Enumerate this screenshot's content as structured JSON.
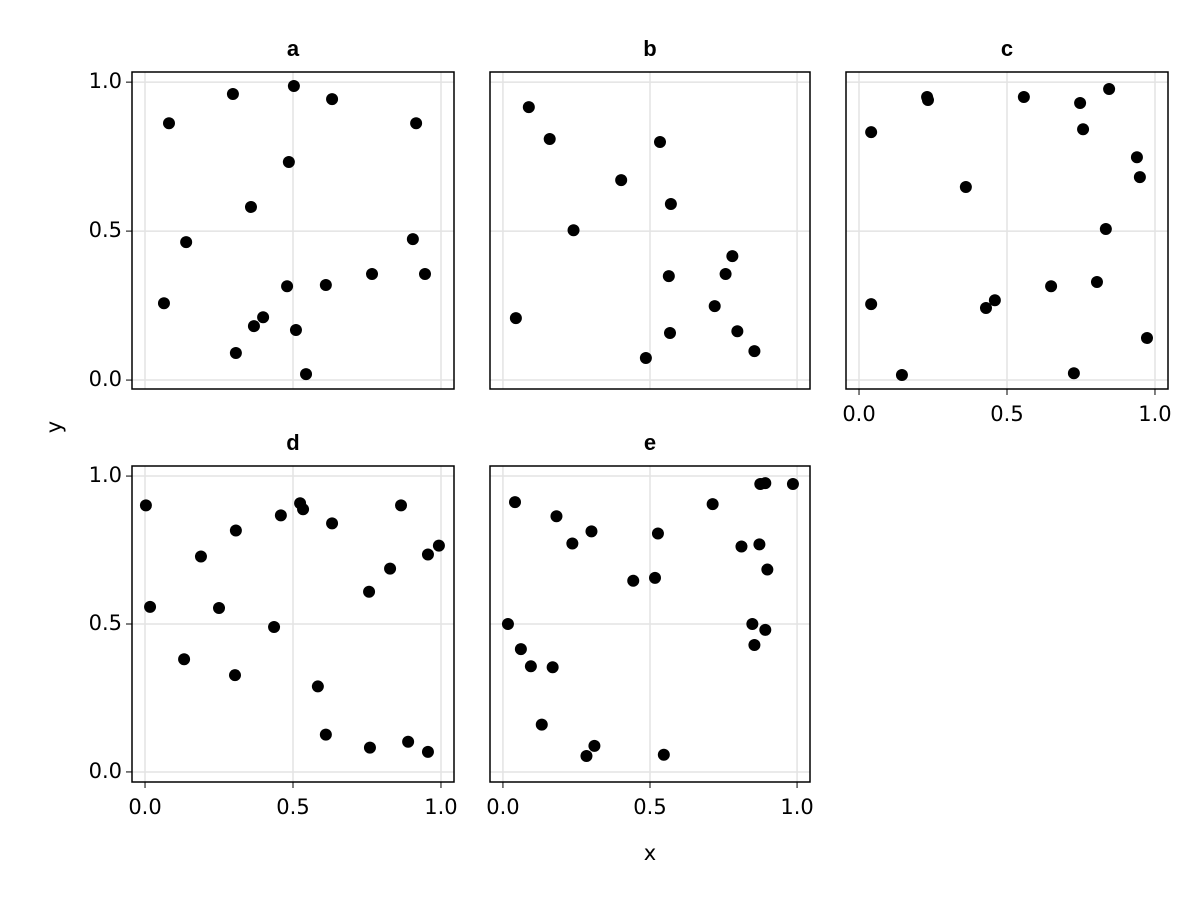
{
  "chart_data": [
    {
      "type": "scatter",
      "title": "a",
      "color": "#000000",
      "grid": true,
      "ylabel": "y",
      "xlim": [
        -0.044,
        1.044
      ],
      "ylim": [
        -0.03,
        1.034
      ],
      "xticks": [
        0,
        0.5,
        1
      ],
      "yticks": [
        {
          "value": 0,
          "label": "0.0"
        },
        {
          "value": 0.5,
          "label": "0.5"
        },
        {
          "value": 1,
          "label": "1.0"
        }
      ],
      "x": [
        0.081,
        0.297,
        0.503,
        0.632,
        0.916,
        0.486,
        0.358,
        0.139,
        0.905,
        0.064,
        0.767,
        0.946,
        0.48,
        0.611,
        0.399,
        0.368,
        0.307,
        0.51,
        0.544
      ],
      "y": [
        0.862,
        0.96,
        0.987,
        0.943,
        0.862,
        0.732,
        0.581,
        0.463,
        0.473,
        0.258,
        0.356,
        0.356,
        0.315,
        0.319,
        0.211,
        0.181,
        0.091,
        0.168,
        0.02
      ]
    },
    {
      "type": "scatter",
      "title": "b",
      "color": "#000000",
      "grid": true,
      "xlim": [
        -0.044,
        1.044
      ],
      "ylim": [
        -0.03,
        1.034
      ],
      "xticks": [
        0,
        0.5,
        1
      ],
      "yticks": [
        0,
        0.5,
        1
      ],
      "x": [
        0.088,
        0.159,
        0.402,
        0.534,
        0.571,
        0.24,
        0.044,
        0.78,
        0.757,
        0.564,
        0.72,
        0.568,
        0.797,
        0.855,
        0.486
      ],
      "y": [
        0.916,
        0.809,
        0.671,
        0.799,
        0.591,
        0.503,
        0.208,
        0.416,
        0.356,
        0.349,
        0.248,
        0.158,
        0.164,
        0.097,
        0.074
      ]
    },
    {
      "type": "scatter",
      "title": "c",
      "color": "#000000",
      "grid": true,
      "xlim": [
        -0.044,
        1.044
      ],
      "ylim": [
        -0.03,
        1.034
      ],
      "xticks": [
        {
          "value": 0,
          "label": "0.0"
        },
        {
          "value": 0.5,
          "label": "0.5"
        },
        {
          "value": 1,
          "label": "1.0"
        }
      ],
      "yticks": [
        0,
        0.5,
        1
      ],
      "x": [
        0.041,
        0.23,
        0.233,
        0.557,
        0.845,
        0.747,
        0.757,
        0.361,
        0.939,
        0.949,
        0.834,
        0.041,
        0.649,
        0.804,
        0.459,
        0.429,
        0.973,
        0.145,
        0.726
      ],
      "y": [
        0.832,
        0.95,
        0.94,
        0.95,
        0.977,
        0.93,
        0.842,
        0.648,
        0.748,
        0.681,
        0.507,
        0.255,
        0.315,
        0.329,
        0.268,
        0.242,
        0.141,
        0.017,
        0.023
      ]
    },
    {
      "type": "scatter",
      "title": "d",
      "color": "#000000",
      "grid": true,
      "xlim": [
        -0.044,
        1.044
      ],
      "ylim": [
        -0.034,
        1.034
      ],
      "xticks": [
        {
          "value": 0,
          "label": "0.0"
        },
        {
          "value": 0.5,
          "label": "0.5"
        },
        {
          "value": 1,
          "label": "1.0"
        }
      ],
      "yticks": [
        {
          "value": 0,
          "label": "0.0"
        },
        {
          "value": 0.5,
          "label": "0.5"
        },
        {
          "value": 1,
          "label": "1.0"
        }
      ],
      "x": [
        0.003,
        0.017,
        0.132,
        0.189,
        0.307,
        0.25,
        0.304,
        0.459,
        0.524,
        0.534,
        0.632,
        0.436,
        0.584,
        0.611,
        0.757,
        0.76,
        0.828,
        0.865,
        0.889,
        0.956,
        0.993,
        0.956
      ],
      "y": [
        0.901,
        0.558,
        0.381,
        0.728,
        0.816,
        0.554,
        0.327,
        0.867,
        0.908,
        0.888,
        0.84,
        0.49,
        0.289,
        0.126,
        0.609,
        0.082,
        0.687,
        0.901,
        0.102,
        0.735,
        0.765,
        0.068
      ]
    },
    {
      "type": "scatter",
      "title": "e",
      "color": "#000000",
      "grid": true,
      "xlabel": "x",
      "xlim": [
        -0.044,
        1.044
      ],
      "ylim": [
        -0.034,
        1.034
      ],
      "xticks": [
        {
          "value": 0,
          "label": "0.0"
        },
        {
          "value": 0.5,
          "label": "0.5"
        },
        {
          "value": 1,
          "label": "1.0"
        }
      ],
      "yticks": [
        0,
        0.5,
        1
      ],
      "x": [
        0.041,
        0.017,
        0.061,
        0.095,
        0.169,
        0.182,
        0.236,
        0.301,
        0.132,
        0.311,
        0.284,
        0.527,
        0.443,
        0.517,
        0.547,
        0.713,
        0.811,
        0.875,
        0.892,
        0.986,
        0.872,
        0.899,
        0.848,
        0.855,
        0.892
      ],
      "y": [
        0.912,
        0.5,
        0.415,
        0.357,
        0.354,
        0.864,
        0.772,
        0.813,
        0.16,
        0.088,
        0.054,
        0.806,
        0.646,
        0.656,
        0.058,
        0.905,
        0.762,
        0.973,
        0.976,
        0.973,
        0.769,
        0.684,
        0.5,
        0.429,
        0.48
      ]
    }
  ]
}
